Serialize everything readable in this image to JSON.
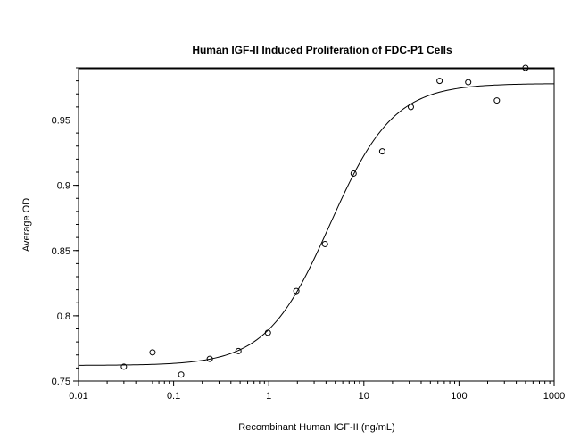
{
  "chart_data": {
    "type": "scatter",
    "title": "Human IGF-II Induced Proliferation of FDC-P1 Cells",
    "xlabel": "Recombinant Human IGF-II (ng/mL)",
    "ylabel": "Average OD",
    "x_scale": "log",
    "xlim": [
      0.01,
      1000
    ],
    "ylim": [
      0.75,
      0.99
    ],
    "x_ticks": [
      0.01,
      0.1,
      1,
      10,
      100,
      1000
    ],
    "x_tick_labels": [
      "0.01",
      "0.1",
      "1",
      "10",
      "100",
      "1000"
    ],
    "y_ticks": [
      0.75,
      0.8,
      0.85,
      0.9,
      0.95
    ],
    "y_tick_labels": [
      "0.75",
      "0.8",
      "0.85",
      "0.9",
      "0.95"
    ],
    "grid": false,
    "points": [
      {
        "x": 0.03,
        "y": 0.761
      },
      {
        "x": 0.06,
        "y": 0.772
      },
      {
        "x": 0.12,
        "y": 0.755
      },
      {
        "x": 0.24,
        "y": 0.767
      },
      {
        "x": 0.48,
        "y": 0.773
      },
      {
        "x": 0.98,
        "y": 0.787
      },
      {
        "x": 1.95,
        "y": 0.819
      },
      {
        "x": 3.9,
        "y": 0.855
      },
      {
        "x": 7.8,
        "y": 0.909
      },
      {
        "x": 15.6,
        "y": 0.926
      },
      {
        "x": 31.2,
        "y": 0.96
      },
      {
        "x": 62.5,
        "y": 0.98
      },
      {
        "x": 125,
        "y": 0.979
      },
      {
        "x": 250,
        "y": 0.965
      },
      {
        "x": 500,
        "y": 0.99
      }
    ],
    "fit_curve": {
      "model": "4PL",
      "bottom": 0.762,
      "top": 0.978,
      "ec50": 4.4,
      "hill": 1.3
    }
  }
}
